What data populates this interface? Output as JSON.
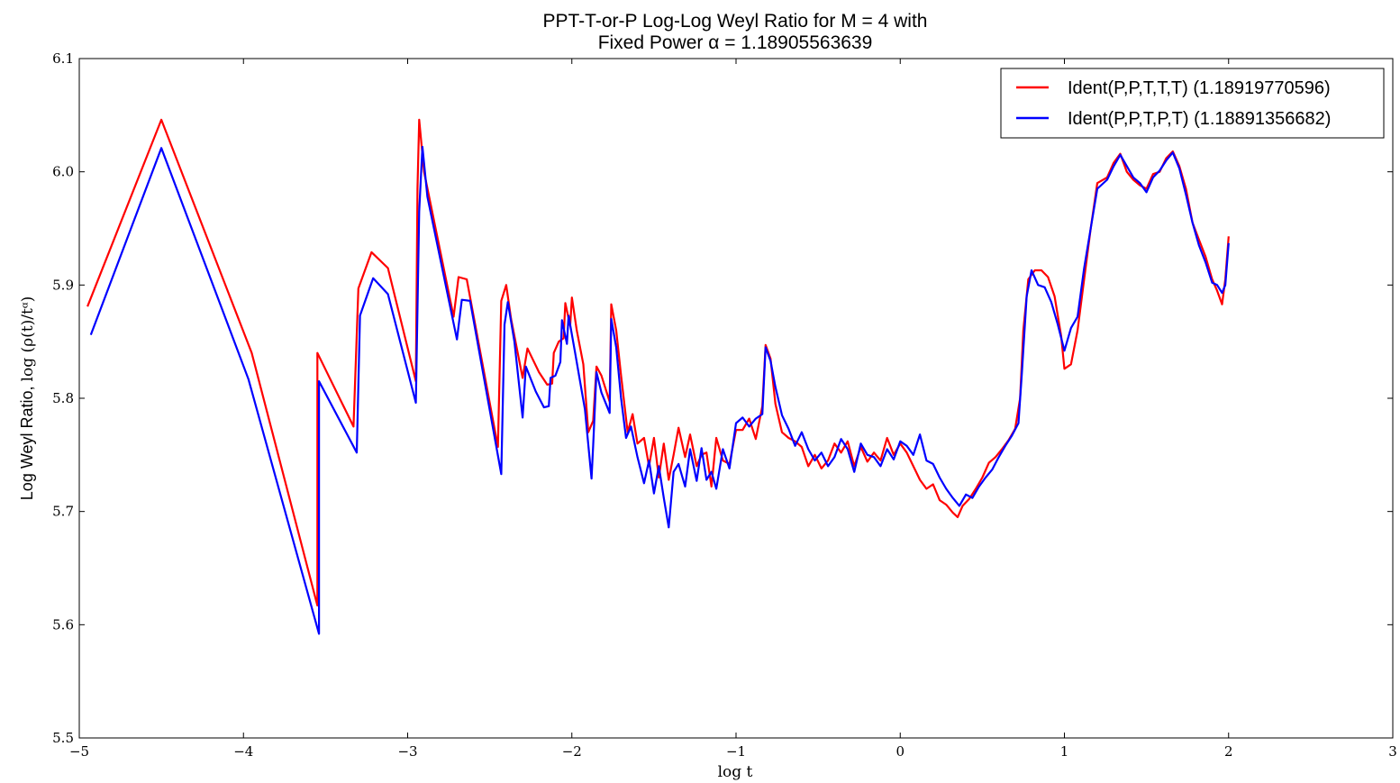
{
  "chart_data": {
    "type": "line",
    "title_line1": "PPT-T-or-P Log-Log Weyl Ratio for M = 4 with",
    "title_line2": "Fixed Power α = 1.18905563639",
    "xlabel": "log t",
    "ylabel_text": "Log Weyl Ratio, ",
    "ylabel_math": "log (ρ(t)/tᵅ)",
    "xlim": [
      -5,
      3
    ],
    "ylim": [
      5.5,
      6.1
    ],
    "xticks": [
      -5,
      -4,
      -3,
      -2,
      -1,
      0,
      1,
      2,
      3
    ],
    "xtick_labels": [
      "−5",
      "−4",
      "−3",
      "−2",
      "−1",
      "0",
      "1",
      "2",
      "3"
    ],
    "yticks": [
      5.5,
      5.6,
      5.7,
      5.8,
      5.9,
      6.0,
      6.1
    ],
    "ytick_labels": [
      "5.5",
      "5.6",
      "5.7",
      "5.8",
      "5.9",
      "6.0",
      "6.1"
    ],
    "grid": false,
    "legend_position": "top-right",
    "series": [
      {
        "name": "Ident(P,P,T,T,T) (1.18919770596)",
        "color": "#ff0000",
        "points": [
          [
            -4.95,
            5.881
          ],
          [
            -4.5,
            6.046
          ],
          [
            -3.95,
            5.84
          ],
          [
            -3.55,
            5.617
          ],
          [
            -3.55,
            5.84
          ],
          [
            -3.33,
            5.775
          ],
          [
            -3.3,
            5.897
          ],
          [
            -3.22,
            5.929
          ],
          [
            -3.12,
            5.915
          ],
          [
            -2.95,
            5.815
          ],
          [
            -2.94,
            5.985
          ],
          [
            -2.93,
            6.046
          ],
          [
            -2.9,
            6.0
          ],
          [
            -2.72,
            5.872
          ],
          [
            -2.69,
            5.907
          ],
          [
            -2.64,
            5.905
          ],
          [
            -2.45,
            5.757
          ],
          [
            -2.43,
            5.886
          ],
          [
            -2.4,
            5.9
          ],
          [
            -2.37,
            5.87
          ],
          [
            -2.3,
            5.818
          ],
          [
            -2.27,
            5.844
          ],
          [
            -2.2,
            5.823
          ],
          [
            -2.15,
            5.812
          ],
          [
            -2.12,
            5.813
          ],
          [
            -2.11,
            5.84
          ],
          [
            -2.08,
            5.85
          ],
          [
            -2.05,
            5.853
          ],
          [
            -2.04,
            5.884
          ],
          [
            -2.01,
            5.864
          ],
          [
            -2.0,
            5.889
          ],
          [
            -1.97,
            5.86
          ],
          [
            -1.93,
            5.83
          ],
          [
            -1.9,
            5.77
          ],
          [
            -1.87,
            5.78
          ],
          [
            -1.85,
            5.828
          ],
          [
            -1.82,
            5.82
          ],
          [
            -1.77,
            5.797
          ],
          [
            -1.76,
            5.883
          ],
          [
            -1.73,
            5.86
          ],
          [
            -1.7,
            5.82
          ],
          [
            -1.66,
            5.77
          ],
          [
            -1.63,
            5.786
          ],
          [
            -1.6,
            5.76
          ],
          [
            -1.56,
            5.765
          ],
          [
            -1.53,
            5.74
          ],
          [
            -1.5,
            5.765
          ],
          [
            -1.47,
            5.73
          ],
          [
            -1.44,
            5.76
          ],
          [
            -1.41,
            5.728
          ],
          [
            -1.38,
            5.75
          ],
          [
            -1.35,
            5.774
          ],
          [
            -1.31,
            5.748
          ],
          [
            -1.28,
            5.768
          ],
          [
            -1.24,
            5.74
          ],
          [
            -1.21,
            5.75
          ],
          [
            -1.18,
            5.752
          ],
          [
            -1.15,
            5.722
          ],
          [
            -1.12,
            5.765
          ],
          [
            -1.08,
            5.745
          ],
          [
            -1.04,
            5.742
          ],
          [
            -1.0,
            5.772
          ],
          [
            -0.96,
            5.772
          ],
          [
            -0.92,
            5.782
          ],
          [
            -0.88,
            5.764
          ],
          [
            -0.84,
            5.793
          ],
          [
            -0.82,
            5.847
          ],
          [
            -0.79,
            5.835
          ],
          [
            -0.76,
            5.795
          ],
          [
            -0.72,
            5.77
          ],
          [
            -0.68,
            5.765
          ],
          [
            -0.64,
            5.762
          ],
          [
            -0.6,
            5.757
          ],
          [
            -0.56,
            5.74
          ],
          [
            -0.52,
            5.75
          ],
          [
            -0.48,
            5.738
          ],
          [
            -0.44,
            5.745
          ],
          [
            -0.4,
            5.76
          ],
          [
            -0.36,
            5.752
          ],
          [
            -0.32,
            5.762
          ],
          [
            -0.28,
            5.74
          ],
          [
            -0.24,
            5.757
          ],
          [
            -0.2,
            5.744
          ],
          [
            -0.16,
            5.752
          ],
          [
            -0.12,
            5.745
          ],
          [
            -0.08,
            5.765
          ],
          [
            -0.04,
            5.75
          ],
          [
            0.0,
            5.76
          ],
          [
            0.04,
            5.752
          ],
          [
            0.08,
            5.74
          ],
          [
            0.12,
            5.728
          ],
          [
            0.16,
            5.72
          ],
          [
            0.2,
            5.724
          ],
          [
            0.24,
            5.71
          ],
          [
            0.28,
            5.706
          ],
          [
            0.32,
            5.699
          ],
          [
            0.35,
            5.695
          ],
          [
            0.38,
            5.705
          ],
          [
            0.42,
            5.711
          ],
          [
            0.46,
            5.72
          ],
          [
            0.5,
            5.73
          ],
          [
            0.54,
            5.743
          ],
          [
            0.58,
            5.748
          ],
          [
            0.62,
            5.755
          ],
          [
            0.66,
            5.763
          ],
          [
            0.7,
            5.773
          ],
          [
            0.73,
            5.8
          ],
          [
            0.75,
            5.86
          ],
          [
            0.78,
            5.905
          ],
          [
            0.82,
            5.913
          ],
          [
            0.86,
            5.913
          ],
          [
            0.9,
            5.907
          ],
          [
            0.94,
            5.89
          ],
          [
            0.98,
            5.855
          ],
          [
            1.0,
            5.826
          ],
          [
            1.04,
            5.83
          ],
          [
            1.08,
            5.86
          ],
          [
            1.12,
            5.905
          ],
          [
            1.16,
            5.95
          ],
          [
            1.2,
            5.99
          ],
          [
            1.26,
            5.995
          ],
          [
            1.3,
            6.008
          ],
          [
            1.34,
            6.016
          ],
          [
            1.38,
            6.0
          ],
          [
            1.42,
            5.993
          ],
          [
            1.46,
            5.988
          ],
          [
            1.5,
            5.985
          ],
          [
            1.54,
            5.998
          ],
          [
            1.58,
            6.0
          ],
          [
            1.62,
            6.012
          ],
          [
            1.66,
            6.018
          ],
          [
            1.7,
            6.005
          ],
          [
            1.74,
            5.985
          ],
          [
            1.78,
            5.955
          ],
          [
            1.82,
            5.94
          ],
          [
            1.86,
            5.925
          ],
          [
            1.9,
            5.905
          ],
          [
            1.93,
            5.895
          ],
          [
            1.96,
            5.883
          ],
          [
            1.98,
            5.905
          ],
          [
            2.0,
            5.943
          ]
        ]
      },
      {
        "name": "Ident(P,P,T,P,T) (1.18891356682)",
        "color": "#0000ff",
        "points": [
          [
            -4.93,
            5.856
          ],
          [
            -4.5,
            6.021
          ],
          [
            -3.97,
            5.817
          ],
          [
            -3.54,
            5.592
          ],
          [
            -3.54,
            5.815
          ],
          [
            -3.31,
            5.752
          ],
          [
            -3.29,
            5.873
          ],
          [
            -3.21,
            5.906
          ],
          [
            -3.12,
            5.892
          ],
          [
            -2.95,
            5.796
          ],
          [
            -2.93,
            5.965
          ],
          [
            -2.91,
            6.022
          ],
          [
            -2.88,
            5.978
          ],
          [
            -2.7,
            5.852
          ],
          [
            -2.67,
            5.887
          ],
          [
            -2.62,
            5.886
          ],
          [
            -2.43,
            5.733
          ],
          [
            -2.41,
            5.865
          ],
          [
            -2.39,
            5.885
          ],
          [
            -2.35,
            5.85
          ],
          [
            -2.3,
            5.783
          ],
          [
            -2.28,
            5.828
          ],
          [
            -2.22,
            5.806
          ],
          [
            -2.17,
            5.792
          ],
          [
            -2.14,
            5.793
          ],
          [
            -2.13,
            5.818
          ],
          [
            -2.1,
            5.82
          ],
          [
            -2.07,
            5.832
          ],
          [
            -2.06,
            5.869
          ],
          [
            -2.03,
            5.848
          ],
          [
            -2.02,
            5.873
          ],
          [
            -1.98,
            5.84
          ],
          [
            -1.92,
            5.79
          ],
          [
            -1.88,
            5.729
          ],
          [
            -1.87,
            5.758
          ],
          [
            -1.85,
            5.823
          ],
          [
            -1.82,
            5.805
          ],
          [
            -1.77,
            5.787
          ],
          [
            -1.76,
            5.87
          ],
          [
            -1.73,
            5.845
          ],
          [
            -1.7,
            5.8
          ],
          [
            -1.67,
            5.765
          ],
          [
            -1.64,
            5.775
          ],
          [
            -1.6,
            5.748
          ],
          [
            -1.56,
            5.725
          ],
          [
            -1.53,
            5.745
          ],
          [
            -1.5,
            5.716
          ],
          [
            -1.47,
            5.74
          ],
          [
            -1.44,
            5.712
          ],
          [
            -1.41,
            5.686
          ],
          [
            -1.38,
            5.735
          ],
          [
            -1.35,
            5.742
          ],
          [
            -1.31,
            5.722
          ],
          [
            -1.28,
            5.755
          ],
          [
            -1.24,
            5.727
          ],
          [
            -1.21,
            5.756
          ],
          [
            -1.18,
            5.728
          ],
          [
            -1.15,
            5.735
          ],
          [
            -1.12,
            5.72
          ],
          [
            -1.08,
            5.755
          ],
          [
            -1.04,
            5.738
          ],
          [
            -1.0,
            5.778
          ],
          [
            -0.96,
            5.783
          ],
          [
            -0.92,
            5.775
          ],
          [
            -0.88,
            5.782
          ],
          [
            -0.84,
            5.786
          ],
          [
            -0.82,
            5.845
          ],
          [
            -0.79,
            5.833
          ],
          [
            -0.76,
            5.81
          ],
          [
            -0.72,
            5.785
          ],
          [
            -0.68,
            5.773
          ],
          [
            -0.64,
            5.758
          ],
          [
            -0.6,
            5.77
          ],
          [
            -0.56,
            5.755
          ],
          [
            -0.52,
            5.745
          ],
          [
            -0.48,
            5.752
          ],
          [
            -0.44,
            5.74
          ],
          [
            -0.4,
            5.748
          ],
          [
            -0.36,
            5.764
          ],
          [
            -0.32,
            5.755
          ],
          [
            -0.28,
            5.735
          ],
          [
            -0.24,
            5.76
          ],
          [
            -0.2,
            5.75
          ],
          [
            -0.16,
            5.748
          ],
          [
            -0.12,
            5.74
          ],
          [
            -0.08,
            5.755
          ],
          [
            -0.04,
            5.746
          ],
          [
            0.0,
            5.762
          ],
          [
            0.04,
            5.758
          ],
          [
            0.08,
            5.75
          ],
          [
            0.12,
            5.768
          ],
          [
            0.16,
            5.745
          ],
          [
            0.2,
            5.742
          ],
          [
            0.24,
            5.73
          ],
          [
            0.28,
            5.72
          ],
          [
            0.32,
            5.712
          ],
          [
            0.36,
            5.705
          ],
          [
            0.4,
            5.715
          ],
          [
            0.44,
            5.712
          ],
          [
            0.48,
            5.722
          ],
          [
            0.52,
            5.73
          ],
          [
            0.56,
            5.737
          ],
          [
            0.6,
            5.748
          ],
          [
            0.64,
            5.758
          ],
          [
            0.68,
            5.767
          ],
          [
            0.72,
            5.778
          ],
          [
            0.74,
            5.82
          ],
          [
            0.77,
            5.89
          ],
          [
            0.8,
            5.913
          ],
          [
            0.84,
            5.9
          ],
          [
            0.88,
            5.898
          ],
          [
            0.92,
            5.885
          ],
          [
            0.96,
            5.865
          ],
          [
            1.0,
            5.842
          ],
          [
            1.04,
            5.862
          ],
          [
            1.08,
            5.872
          ],
          [
            1.12,
            5.915
          ],
          [
            1.16,
            5.95
          ],
          [
            1.2,
            5.985
          ],
          [
            1.26,
            5.993
          ],
          [
            1.3,
            6.005
          ],
          [
            1.34,
            6.015
          ],
          [
            1.38,
            6.005
          ],
          [
            1.42,
            5.995
          ],
          [
            1.46,
            5.99
          ],
          [
            1.5,
            5.982
          ],
          [
            1.54,
            5.995
          ],
          [
            1.58,
            6.001
          ],
          [
            1.62,
            6.01
          ],
          [
            1.66,
            6.017
          ],
          [
            1.7,
            6.003
          ],
          [
            1.74,
            5.98
          ],
          [
            1.78,
            5.955
          ],
          [
            1.82,
            5.935
          ],
          [
            1.86,
            5.92
          ],
          [
            1.9,
            5.902
          ],
          [
            1.93,
            5.9
          ],
          [
            1.96,
            5.893
          ],
          [
            1.98,
            5.9
          ],
          [
            2.0,
            5.937
          ]
        ]
      }
    ]
  }
}
